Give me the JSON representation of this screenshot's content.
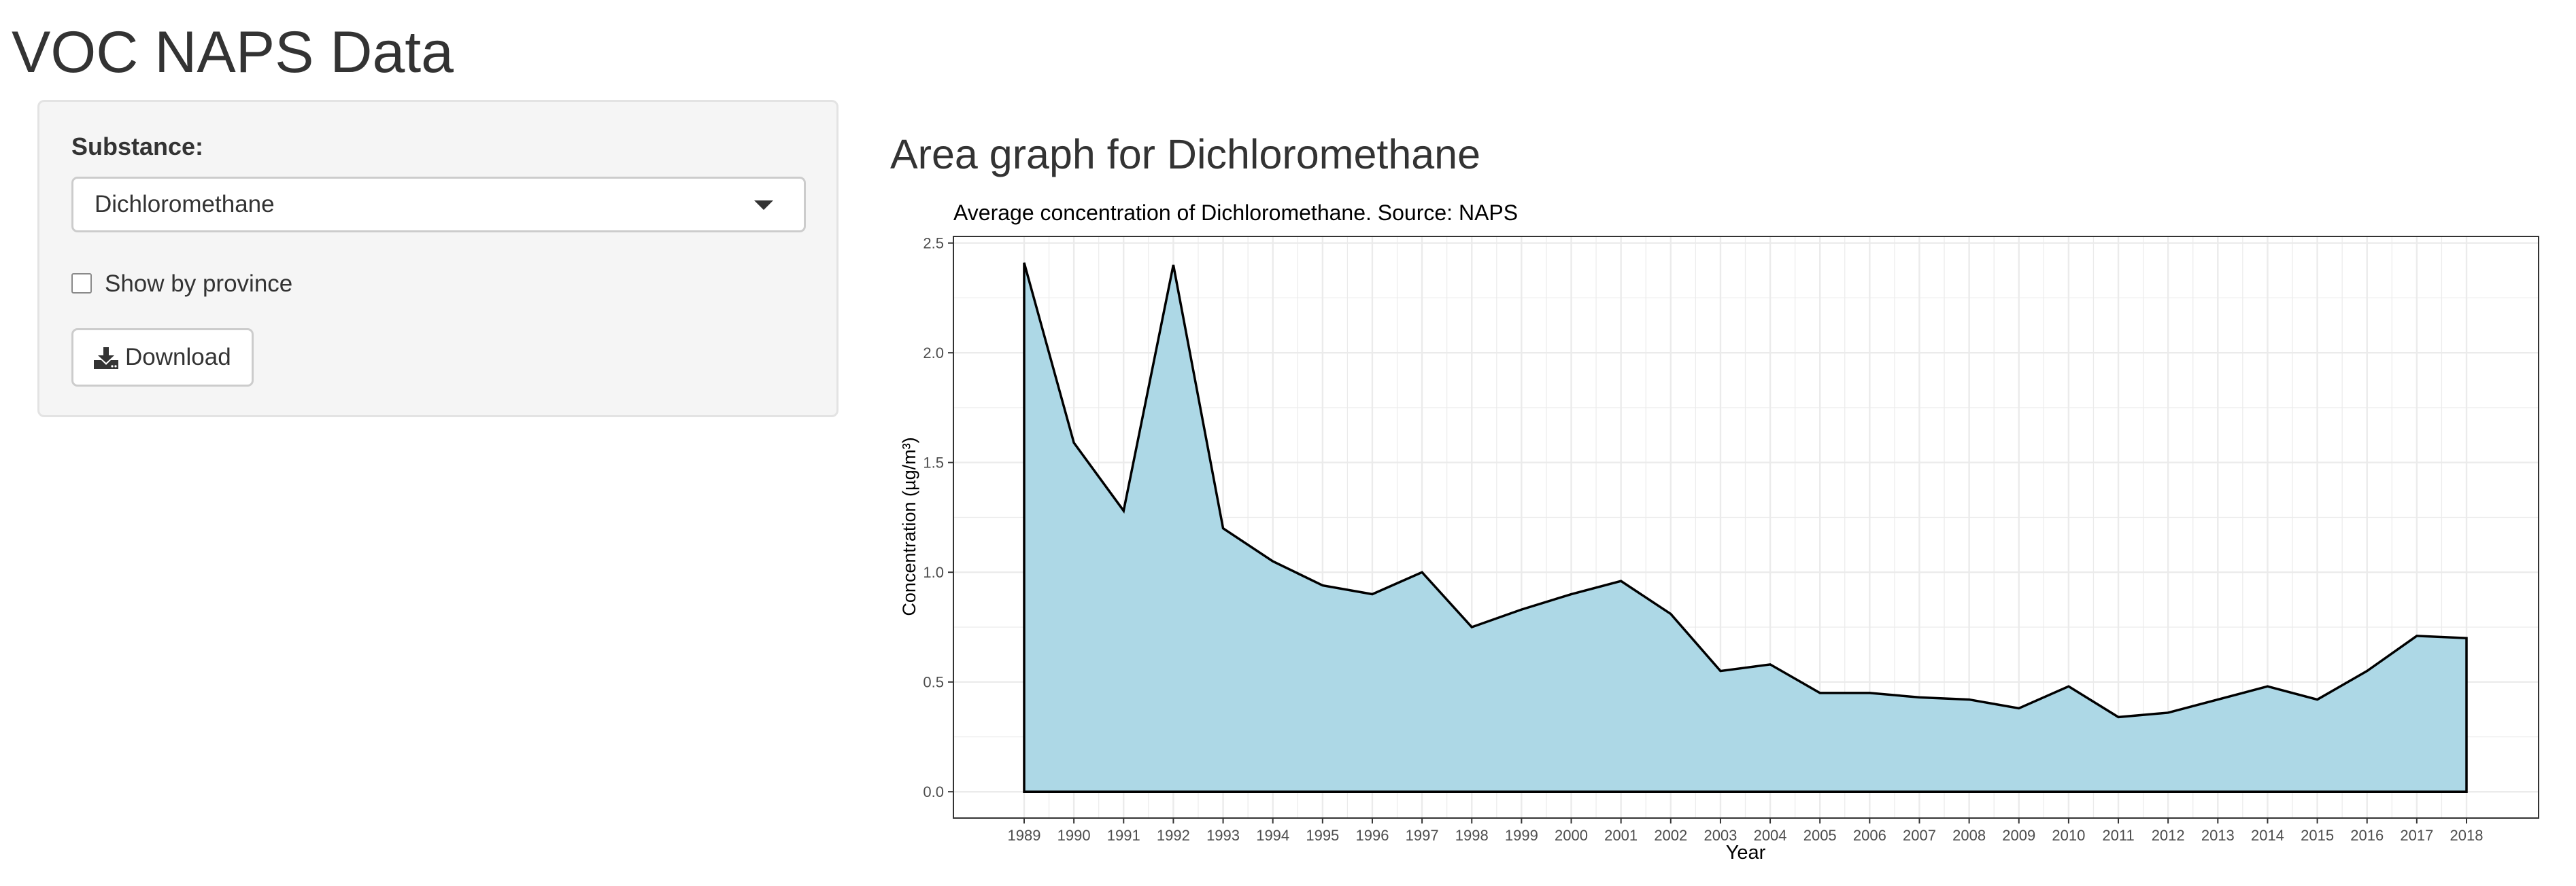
{
  "app": {
    "title": "VOC NAPS Data"
  },
  "sidebar": {
    "substance_label": "Substance:",
    "substance_selected": "Dichloromethane",
    "show_by_province_label": "Show by province",
    "show_by_province_checked": false,
    "download_label": "Download"
  },
  "main": {
    "heading": "Area graph for Dichloromethane"
  },
  "colors": {
    "area_fill": "#add8e6",
    "area_line": "#000000",
    "grid": "#ebebeb",
    "panel_border": "#333333"
  },
  "chart_data": {
    "type": "area",
    "title": "Average concentration of Dichloromethane. Source: NAPS",
    "xlabel": "Year",
    "ylabel": "Concentration (µg/m³)",
    "categories": [
      "1989",
      "1990",
      "1991",
      "1992",
      "1993",
      "1994",
      "1995",
      "1996",
      "1997",
      "1998",
      "1999",
      "2000",
      "2001",
      "2002",
      "2003",
      "2004",
      "2005",
      "2006",
      "2007",
      "2008",
      "2009",
      "2010",
      "2011",
      "2012",
      "2013",
      "2014",
      "2015",
      "2016",
      "2017",
      "2018"
    ],
    "values": [
      2.41,
      1.59,
      1.28,
      2.4,
      1.2,
      1.05,
      0.94,
      0.9,
      1.0,
      0.75,
      0.83,
      0.9,
      0.96,
      0.81,
      0.55,
      0.58,
      0.45,
      0.45,
      0.43,
      0.42,
      0.38,
      0.48,
      0.34,
      0.36,
      0.42,
      0.48,
      0.42,
      0.55,
      0.71,
      0.7
    ],
    "y_ticks": [
      "0.0",
      "0.5",
      "1.0",
      "1.5",
      "2.0",
      "2.5"
    ],
    "ylim": [
      -0.12,
      2.53
    ],
    "grid": true,
    "legend": "none"
  }
}
